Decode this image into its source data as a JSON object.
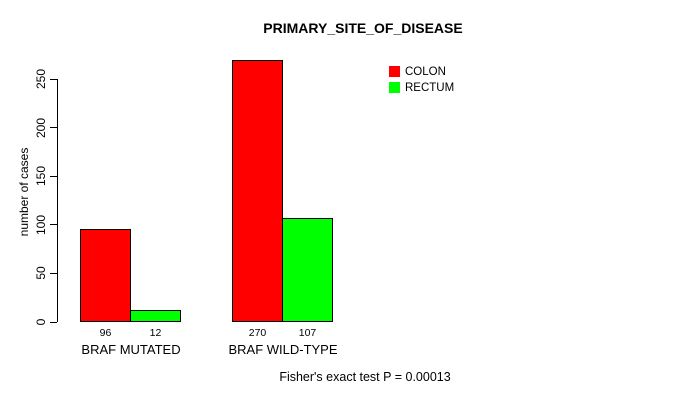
{
  "chart_data": {
    "type": "bar",
    "title": "PRIMARY_SITE_OF_DISEASE",
    "ylabel": "number of cases",
    "categories": [
      "BRAF MUTATED",
      "BRAF WILD-TYPE"
    ],
    "series": [
      {
        "name": "COLON",
        "color": "#ff0000",
        "values": [
          96,
          270
        ]
      },
      {
        "name": "RECTUM",
        "color": "#00ff00",
        "values": [
          12,
          107
        ]
      }
    ],
    "yticks": [
      0,
      50,
      100,
      150,
      200,
      250
    ],
    "ylim": [
      0,
      270
    ],
    "grid": false,
    "legend_position": "top-right",
    "annotation": "Fisher's exact test P = 0.00013"
  }
}
